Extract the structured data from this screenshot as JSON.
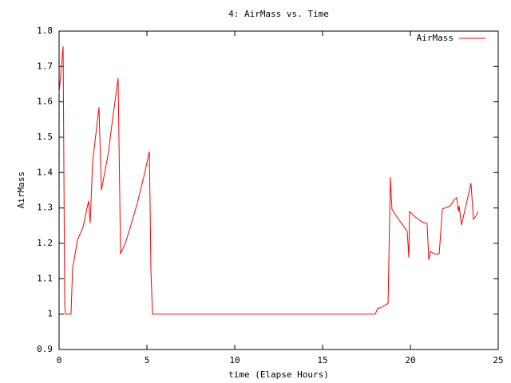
{
  "chart_data": {
    "type": "line",
    "title": "4: AirMass vs. Time",
    "x_label": "time (Elapse Hours)",
    "y_label": "AirMass",
    "x": [
      0,
      0.23,
      0.32,
      0.36,
      0.68,
      0.77,
      1.05,
      1.36,
      1.68,
      1.77,
      1.91,
      2.27,
      2.41,
      2.82,
      2.95,
      3.36,
      3.5,
      3.77,
      4.05,
      4.45,
      4.86,
      5.14,
      5.23,
      5.32,
      18,
      18.14,
      18.27,
      18.73,
      18.86,
      18.95,
      19.23,
      19.59,
      19.82,
      19.91,
      19.95,
      20.27,
      20.68,
      20.95,
      21.05,
      21.14,
      21.36,
      21.64,
      21.82,
      22.27,
      22.5,
      22.64,
      22.73,
      22.77,
      22.91,
      23.45,
      23.59,
      23.77,
      23.86
    ],
    "series": [
      {
        "name": "AirMass",
        "color": "#ff0000",
        "values": [
          1.624,
          1.757,
          1.03,
          1.0,
          1.0,
          1.13,
          1.21,
          1.245,
          1.32,
          1.257,
          1.43,
          1.585,
          1.35,
          1.46,
          1.515,
          1.667,
          1.17,
          1.2,
          1.245,
          1.313,
          1.396,
          1.46,
          1.12,
          1.0,
          1.0,
          1.017,
          1.017,
          1.03,
          1.387,
          1.297,
          1.275,
          1.25,
          1.234,
          1.16,
          1.29,
          1.275,
          1.26,
          1.256,
          1.153,
          1.177,
          1.17,
          1.17,
          1.297,
          1.306,
          1.324,
          1.329,
          1.29,
          1.306,
          1.252,
          1.37,
          1.268,
          1.28,
          1.29
        ]
      }
    ],
    "xlim": [
      0,
      25
    ],
    "xticks": [
      0,
      5,
      10,
      15,
      20,
      25
    ],
    "ylim": [
      0.9,
      1.8
    ],
    "yticks": [
      0.9,
      1,
      1.1,
      1.2,
      1.3,
      1.4,
      1.5,
      1.6,
      1.7,
      1.8
    ],
    "grid": false,
    "legend": "top-right"
  }
}
